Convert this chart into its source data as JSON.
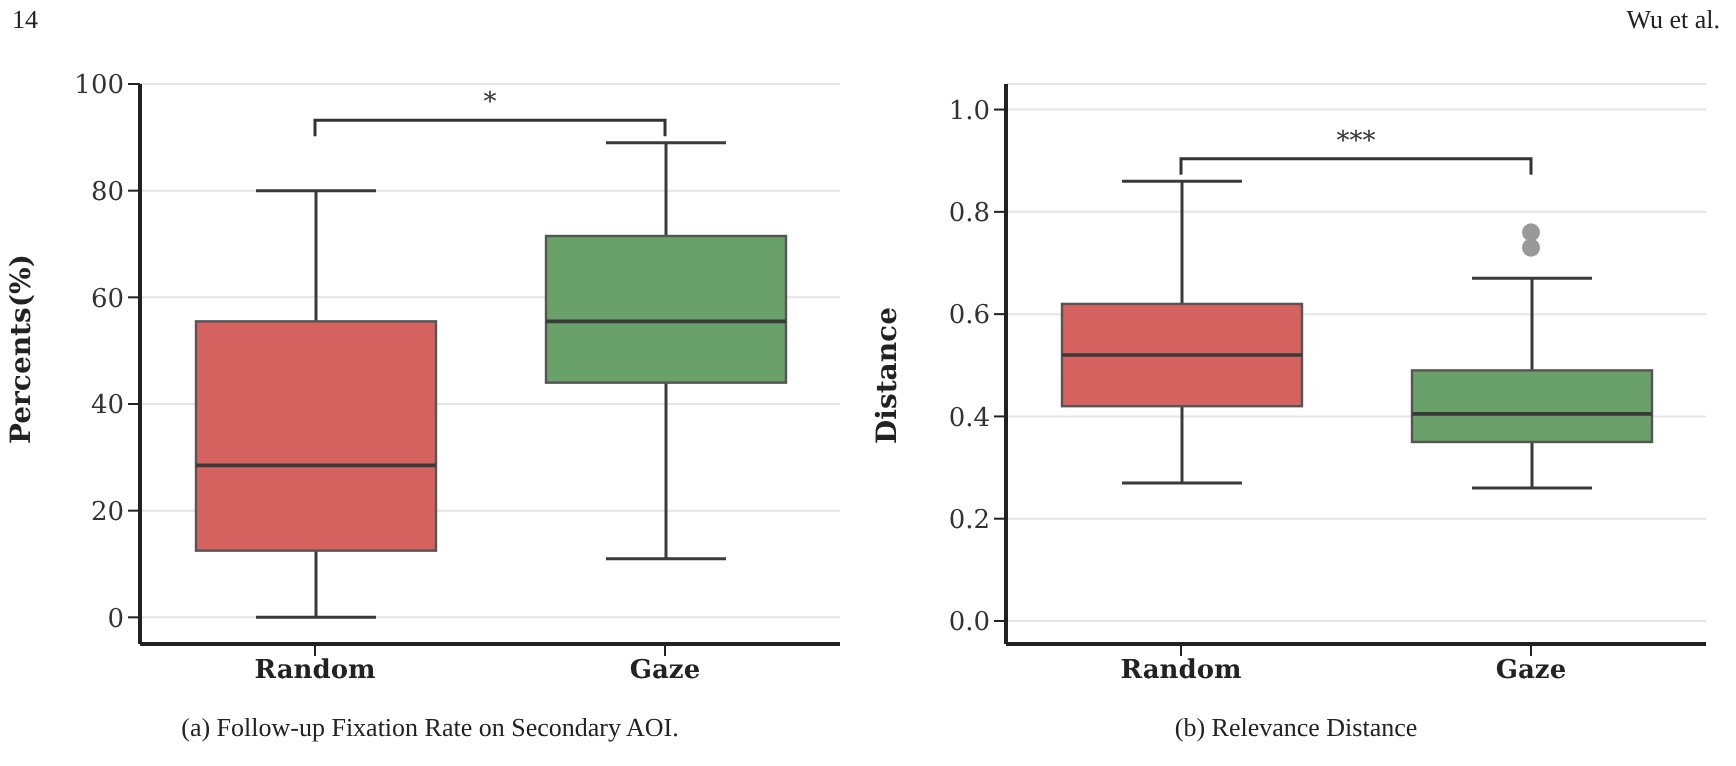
{
  "chart_data": [
    {
      "type": "box",
      "title": "(a) Follow-up Fixation Rate on Secondary AOI.",
      "ylabel": "Percents(%)",
      "categories": [
        "Random",
        "Gaze"
      ],
      "colors": [
        "#d6625f",
        "#6aa16a"
      ],
      "boxes": [
        {
          "low": 0,
          "q1": 12.5,
          "median": 28.5,
          "q3": 55.5,
          "high": 80
        },
        {
          "low": 11,
          "q1": 44,
          "median": 55.5,
          "q3": 71.5,
          "high": 89
        }
      ],
      "ylim": [
        -5,
        100
      ],
      "yticks": [
        0,
        20,
        40,
        60,
        80,
        100
      ],
      "grid": "y",
      "annotations": [
        "*",
        "14"
      ]
    },
    {
      "type": "box",
      "title": "(b) Relevance Distance",
      "ylabel": "Distance",
      "categories": [
        "Random",
        "Gaze"
      ],
      "colors": [
        "#d6625f",
        "#6aa16a"
      ],
      "boxes": [
        {
          "low": 0.27,
          "q1": 0.42,
          "median": 0.52,
          "q3": 0.62,
          "high": 0.86
        },
        {
          "low": 0.26,
          "q1": 0.35,
          "median": 0.405,
          "q3": 0.49,
          "high": 0.67,
          "outliers": [
            0.76,
            0.73
          ]
        }
      ],
      "ylim": [
        -0.045,
        1.05
      ],
      "yticks": [
        {
          "value": 0,
          "label": "0.0"
        },
        0.2,
        0.4,
        0.6,
        0.8,
        {
          "value": 1,
          "label": "1.0"
        }
      ],
      "grid": "y",
      "annotations": [
        "***",
        "Wu et al."
      ]
    }
  ]
}
